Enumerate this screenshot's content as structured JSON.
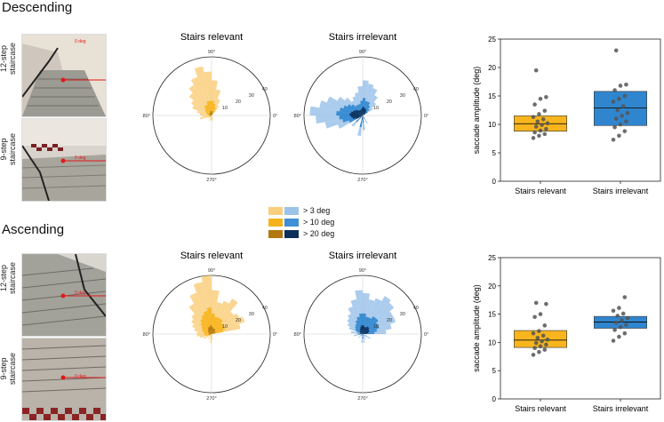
{
  "sections": [
    {
      "title": "Descending",
      "staircases": [
        {
          "label_line1": "12-step",
          "label_line2": "staircase",
          "marker": "0 deg"
        },
        {
          "label_line1": "9-step",
          "label_line2": "staircase",
          "marker": "0 deg"
        }
      ]
    },
    {
      "title": "Ascending",
      "staircases": [
        {
          "label_line1": "12-step",
          "label_line2": "staircase",
          "marker": "0 deg"
        },
        {
          "label_line1": "9-step",
          "label_line2": "staircase",
          "marker": "0 deg"
        }
      ]
    }
  ],
  "legend": {
    "items": [
      {
        "label": "> 3 deg",
        "colors": [
          "#f9cf7e",
          "#9cc3ea"
        ]
      },
      {
        "label": "> 10 deg",
        "colors": [
          "#f4b31d",
          "#3f8fd6"
        ]
      },
      {
        "label": "> 20 deg",
        "colors": [
          "#b2770f",
          "#0c2e5a"
        ]
      }
    ]
  },
  "colors": {
    "relevant": "#f8b51d",
    "irrelevant": "#2f86cf",
    "relevant_light": "#f9cf7e",
    "irrelevant_light": "#9cc3ea",
    "relevant_dark": "#b2770f",
    "irrelevant_dark": "#0c2e5a",
    "marker": "#e0191a"
  },
  "chart_data": [
    {
      "type": "polar-histogram",
      "section": "Descending",
      "title": "Stairs relevant",
      "angle_labels": [
        "90°",
        "180°",
        "270°",
        "0°"
      ],
      "radial_ticks": [
        10,
        20,
        30,
        40
      ],
      "rmax": 40,
      "bins_deg": [
        55,
        65,
        75,
        85,
        95,
        105,
        115,
        125,
        135,
        145,
        155,
        165,
        175,
        185,
        195,
        205,
        225,
        250,
        265,
        275,
        290
      ],
      "counts_gt3": [
        8,
        12,
        18,
        24,
        30,
        34,
        28,
        24,
        20,
        16,
        14,
        10,
        8,
        6,
        8,
        4,
        3,
        4,
        3,
        4,
        3
      ],
      "counts_gt10": [
        4,
        6,
        8,
        10,
        10,
        10,
        8,
        8,
        6,
        5,
        4,
        3,
        2,
        2,
        2,
        2,
        1,
        2,
        1,
        2,
        1
      ],
      "counts_gt20": [
        1,
        2,
        2,
        3,
        3,
        3,
        2,
        2,
        2,
        2,
        1,
        1,
        1,
        1,
        1,
        1,
        0,
        0,
        0,
        0,
        0
      ]
    },
    {
      "type": "polar-histogram",
      "section": "Descending",
      "title": "Stairs irrelevant",
      "angle_labels": [
        "90°",
        "180°",
        "270°",
        "0°"
      ],
      "radial_ticks": [
        10,
        20,
        30,
        40
      ],
      "rmax": 40,
      "bins_deg": [
        35,
        45,
        55,
        65,
        75,
        85,
        95,
        105,
        115,
        125,
        135,
        145,
        155,
        165,
        175,
        185,
        195,
        205,
        225,
        260,
        275,
        300
      ],
      "counts_gt3": [
        8,
        12,
        16,
        20,
        22,
        24,
        20,
        16,
        14,
        12,
        16,
        20,
        26,
        30,
        36,
        32,
        26,
        18,
        10,
        14,
        10,
        6
      ],
      "counts_gt10": [
        4,
        6,
        8,
        10,
        10,
        12,
        10,
        8,
        8,
        8,
        10,
        12,
        14,
        16,
        18,
        16,
        14,
        10,
        6,
        8,
        5,
        3
      ],
      "counts_gt20": [
        2,
        3,
        4,
        5,
        5,
        6,
        5,
        4,
        4,
        4,
        5,
        6,
        7,
        8,
        9,
        8,
        7,
        5,
        3,
        3,
        2,
        1
      ]
    },
    {
      "type": "boxplot",
      "section": "Descending",
      "ylabel": "saccade amplitude (deg)",
      "ylim": [
        0,
        25
      ],
      "yticks": [
        0,
        5,
        10,
        15,
        20,
        25
      ],
      "categories": [
        "Stairs relevant",
        "Stairs irrelevant"
      ],
      "boxes": [
        {
          "name": "Stairs relevant",
          "q1": 8.8,
          "median": 10.1,
          "q3": 11.5,
          "points": [
            7.6,
            8.0,
            8.3,
            8.6,
            8.9,
            9.2,
            9.6,
            9.9,
            10.2,
            10.5,
            10.9,
            11.3,
            11.8,
            12.4,
            13.5,
            14.5,
            14.8,
            19.5
          ]
        },
        {
          "name": "Stairs irrelevant",
          "q1": 9.8,
          "median": 12.9,
          "q3": 15.8,
          "points": [
            7.3,
            8.0,
            8.8,
            9.5,
            10.0,
            10.5,
            11.0,
            11.5,
            12.0,
            12.5,
            13.2,
            14.0,
            14.5,
            15.0,
            16.0,
            16.8,
            17.0,
            23.0
          ]
        }
      ]
    },
    {
      "type": "polar-histogram",
      "section": "Ascending",
      "title": "Stairs relevant",
      "angle_labels": [
        "90°",
        "180°",
        "270°",
        "0°"
      ],
      "radial_ticks": [
        10,
        20,
        30,
        40
      ],
      "rmax": 40,
      "bins_deg": [
        15,
        25,
        35,
        45,
        55,
        65,
        75,
        85,
        95,
        105,
        115,
        125,
        135,
        145,
        155,
        165,
        175,
        185,
        195,
        210,
        240,
        265,
        275
      ],
      "counts_gt3": [
        20,
        24,
        22,
        20,
        28,
        24,
        22,
        30,
        40,
        36,
        30,
        24,
        18,
        16,
        14,
        12,
        10,
        10,
        8,
        6,
        4,
        6,
        4
      ],
      "counts_gt10": [
        8,
        10,
        10,
        10,
        12,
        12,
        12,
        14,
        18,
        16,
        14,
        12,
        10,
        8,
        7,
        6,
        5,
        5,
        4,
        3,
        2,
        3,
        2
      ],
      "counts_gt20": [
        2,
        3,
        3,
        3,
        4,
        4,
        4,
        5,
        6,
        5,
        5,
        4,
        3,
        3,
        2,
        2,
        2,
        2,
        1,
        1,
        0,
        1,
        0
      ]
    },
    {
      "type": "polar-histogram",
      "section": "Ascending",
      "title": "Stairs irrelevant",
      "angle_labels": [
        "90°",
        "180°",
        "270°",
        "0°"
      ],
      "radial_ticks": [
        10,
        20,
        30,
        40
      ],
      "rmax": 40,
      "bins_deg": [
        5,
        15,
        25,
        35,
        45,
        55,
        65,
        75,
        85,
        95,
        105,
        115,
        125,
        135,
        145,
        155,
        170,
        190,
        220,
        265,
        280,
        300,
        330
      ],
      "counts_gt3": [
        16,
        20,
        24,
        24,
        28,
        30,
        26,
        24,
        28,
        30,
        24,
        20,
        16,
        14,
        12,
        10,
        8,
        6,
        4,
        6,
        6,
        4,
        6
      ],
      "counts_gt10": [
        8,
        10,
        12,
        12,
        14,
        14,
        12,
        12,
        14,
        14,
        12,
        10,
        8,
        7,
        6,
        5,
        4,
        3,
        2,
        3,
        3,
        2,
        3
      ],
      "counts_gt20": [
        3,
        4,
        5,
        5,
        6,
        6,
        5,
        5,
        6,
        6,
        5,
        4,
        3,
        3,
        2,
        2,
        2,
        1,
        1,
        1,
        1,
        1,
        1
      ]
    },
    {
      "type": "boxplot",
      "section": "Ascending",
      "ylabel": "saccade amplitude (deg)",
      "ylim": [
        0,
        25
      ],
      "yticks": [
        0,
        5,
        10,
        15,
        20,
        25
      ],
      "categories": [
        "Stairs relevant",
        "Stairs irrelevant"
      ],
      "boxes": [
        {
          "name": "Stairs relevant",
          "q1": 9.1,
          "median": 10.4,
          "q3": 12.1,
          "points": [
            7.8,
            8.3,
            8.7,
            9.0,
            9.3,
            9.6,
            9.9,
            10.2,
            10.5,
            10.8,
            11.2,
            11.6,
            12.0,
            13.0,
            14.5,
            15.0,
            16.8,
            17.0
          ]
        },
        {
          "name": "Stairs irrelevant",
          "q1": 12.5,
          "median": 13.6,
          "q3": 14.6,
          "points": [
            10.3,
            11.0,
            11.6,
            12.2,
            12.7,
            13.1,
            13.5,
            13.9,
            14.3,
            14.7,
            15.1,
            15.6,
            16.1,
            18.0
          ]
        }
      ]
    }
  ]
}
